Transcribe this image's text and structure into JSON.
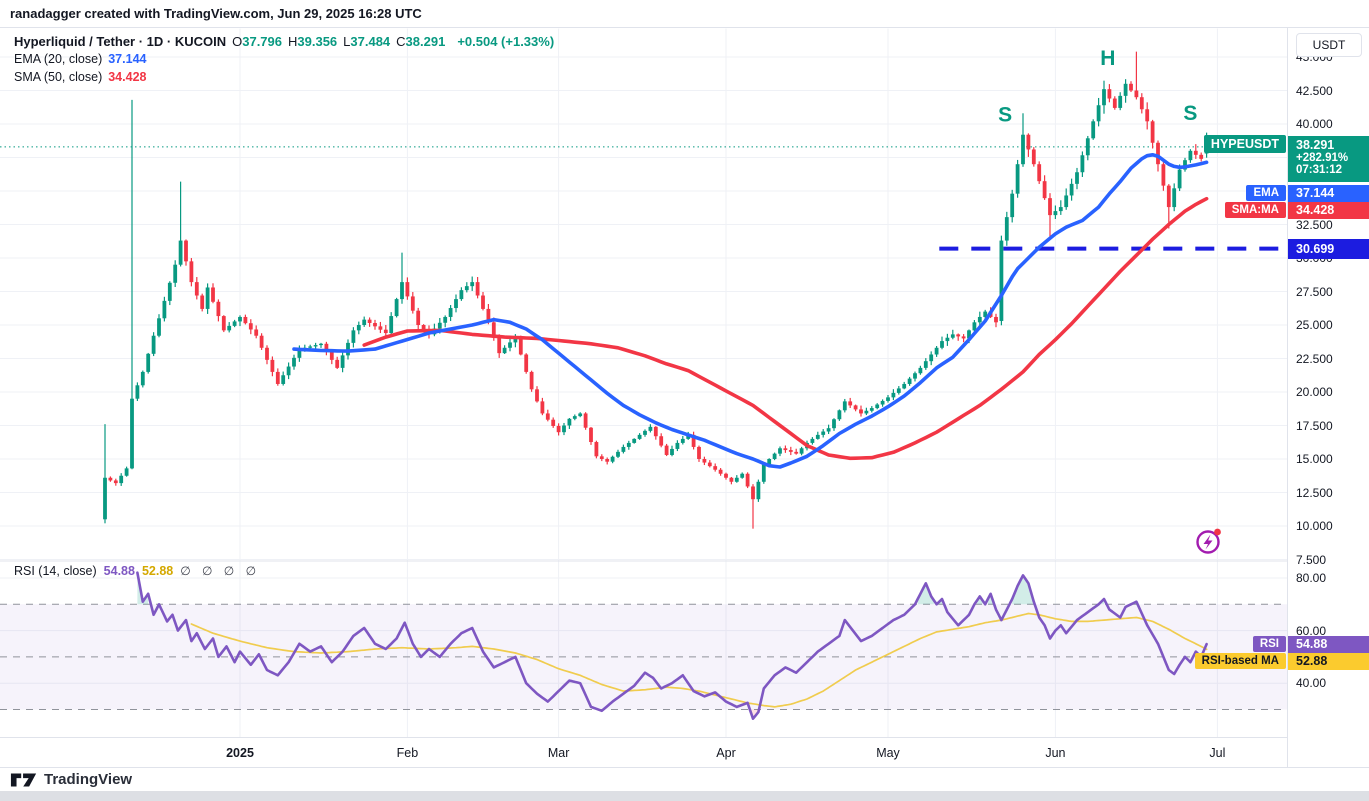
{
  "attribution": "ranadagger created with TradingView.com, Jun 29, 2025 16:28 UTC",
  "legend": {
    "symbol_title": "Hyperliquid / Tether · 1D · KUCOIN",
    "ohlc_items": [
      {
        "k": "O",
        "v": "37.796"
      },
      {
        "k": "H",
        "v": "39.356"
      },
      {
        "k": "L",
        "v": "37.484"
      },
      {
        "k": "C",
        "v": "38.291"
      }
    ],
    "change": "+0.504 (+1.33%)",
    "ema_label": "EMA (20, close)",
    "ema_value": "37.144",
    "sma_label": "SMA (50, close)",
    "sma_value": "34.428",
    "rsi_label": "RSI (14, close)",
    "rsi_value": "54.88",
    "rsi_ma_value": "52.88",
    "rsi_empties": "∅ ∅ ∅ ∅"
  },
  "axis": {
    "currency_button": "USDT",
    "price_ticks": [
      45,
      42.5,
      40,
      37.5,
      35,
      32.5,
      30,
      27.5,
      25,
      22.5,
      20,
      17.5,
      15,
      12.5,
      10,
      7.5
    ],
    "rsi_ticks": [
      80,
      60,
      40
    ],
    "time_ticks": [
      {
        "label": "2025",
        "day": 25,
        "bold": true
      },
      {
        "label": "Feb",
        "day": 56
      },
      {
        "label": "Mar",
        "day": 84
      },
      {
        "label": "Apr",
        "day": 115
      },
      {
        "label": "May",
        "day": 145
      },
      {
        "label": "Jun",
        "day": 176
      },
      {
        "label": "Jul",
        "day": 206
      }
    ],
    "scale_badges": {
      "last_price": "38.291",
      "change_pct": "+282.91%",
      "countdown": "07:31:12",
      "ema": "37.144",
      "sma": "34.428",
      "level": "30.699"
    }
  },
  "pane_labels": {
    "symbol": "HYPEUSDT",
    "ema": "EMA",
    "sma": "SMA:MA",
    "rsi": "RSI",
    "rsi_ma": "RSI-based MA"
  },
  "footer": {
    "brand": "TradingView"
  },
  "colors": {
    "up": "#089981",
    "down": "#F23645",
    "ema": "#2962FF",
    "sma": "#F23645",
    "level_line": "#1C1CE0",
    "rsi": "#7E57C2",
    "rsi_ma": "#F0CC4E",
    "rsi_ma_badge": "#FBCB2E",
    "rsi_badge": "#7E57C2",
    "annotation": "#089981",
    "grid": "#EFF1F6",
    "border": "#E0E3EB",
    "text": "#131722",
    "band_fill": "rgba(126,87,194,0.07)",
    "flash_icon": "#A21CAF"
  },
  "chart_data": {
    "type": "candlestick",
    "title": "Hyperliquid / Tether",
    "symbol": "HYPEUSDT",
    "exchange": "KUCOIN",
    "interval": "1D",
    "last_bar": {
      "o": 37.796,
      "h": 39.356,
      "l": 37.484,
      "c": 38.291,
      "change": 0.504,
      "change_pct": 1.33
    },
    "ema20_last": 37.144,
    "sma50_last": 34.428,
    "rsi_last": 54.88,
    "rsi_ma_last": 52.88,
    "price_range_visible": [
      7.4,
      47.2
    ],
    "rsi_gridlines": [
      80,
      60,
      40
    ],
    "rsi_levels": {
      "upper": 70,
      "middle": 50,
      "lower": 30
    },
    "neckline": {
      "price": 30.699,
      "day_start": 154.5,
      "extends_to_axis": true
    },
    "current_price_line": 38.291,
    "days_total": 204,
    "close_keypoints": [
      [
        0,
        13.6
      ],
      [
        2,
        13.2
      ],
      [
        4,
        14.3
      ],
      [
        5,
        19.5
      ],
      [
        7,
        21.5
      ],
      [
        9,
        24.2
      ],
      [
        11,
        26.8
      ],
      [
        13,
        29.5
      ],
      [
        14,
        31.3
      ],
      [
        16,
        28.2
      ],
      [
        18,
        26.2
      ],
      [
        19,
        27.8
      ],
      [
        22,
        24.6
      ],
      [
        25,
        25.6
      ],
      [
        28,
        24.2
      ],
      [
        32,
        20.6
      ],
      [
        36,
        23.2
      ],
      [
        40,
        23.6
      ],
      [
        43,
        21.8
      ],
      [
        46,
        24.6
      ],
      [
        48,
        25.4
      ],
      [
        52,
        24.4
      ],
      [
        55,
        28.2
      ],
      [
        58,
        25.0
      ],
      [
        60,
        24.3
      ],
      [
        63,
        25.6
      ],
      [
        66,
        27.6
      ],
      [
        68,
        28.2
      ],
      [
        71,
        25.2
      ],
      [
        73,
        22.9
      ],
      [
        76,
        24.1
      ],
      [
        79,
        20.2
      ],
      [
        81,
        18.4
      ],
      [
        84,
        17.0
      ],
      [
        86,
        18.0
      ],
      [
        88,
        18.4
      ],
      [
        91,
        15.2
      ],
      [
        93,
        14.8
      ],
      [
        96,
        15.9
      ],
      [
        99,
        16.8
      ],
      [
        101,
        17.4
      ],
      [
        104,
        15.3
      ],
      [
        106,
        16.2
      ],
      [
        108,
        16.8
      ],
      [
        110,
        15.0
      ],
      [
        113,
        14.2
      ],
      [
        116,
        13.3
      ],
      [
        118,
        13.9
      ],
      [
        120,
        12.0
      ],
      [
        122,
        14.6
      ],
      [
        125,
        15.8
      ],
      [
        128,
        15.4
      ],
      [
        130,
        16.2
      ],
      [
        132,
        16.8
      ],
      [
        134,
        17.3
      ],
      [
        137,
        19.3
      ],
      [
        140,
        18.4
      ],
      [
        142,
        18.8
      ],
      [
        145,
        19.6
      ],
      [
        148,
        20.6
      ],
      [
        151,
        21.8
      ],
      [
        153,
        22.8
      ],
      [
        155,
        23.8
      ],
      [
        157,
        24.3
      ],
      [
        159,
        24.0
      ],
      [
        161,
        25.2
      ],
      [
        163,
        26.0
      ],
      [
        165,
        25.2
      ],
      [
        166,
        31.3
      ],
      [
        168,
        34.8
      ],
      [
        170,
        39.2
      ],
      [
        172,
        37.0
      ],
      [
        175,
        33.2
      ],
      [
        177,
        33.8
      ],
      [
        180,
        36.4
      ],
      [
        183,
        40.2
      ],
      [
        185,
        42.6
      ],
      [
        187,
        41.2
      ],
      [
        189,
        43.0
      ],
      [
        191,
        42.0
      ],
      [
        193,
        40.2
      ],
      [
        195,
        37.0
      ],
      [
        197,
        33.8
      ],
      [
        199,
        36.6
      ],
      [
        201,
        38.0
      ],
      [
        203,
        37.4
      ],
      [
        204,
        38.291
      ]
    ],
    "special_bars": {
      "0": {
        "o": 10.5,
        "l": 10.2,
        "h": 17.6
      },
      "5": {
        "h": 41.8
      },
      "14": {
        "h": 35.7
      },
      "55": {
        "h": 30.4
      },
      "120": {
        "l": 9.8
      },
      "166": {
        "o": 25.3
      },
      "170": {
        "h": 40.8
      },
      "175": {
        "l": 31.6
      },
      "191": {
        "h": 45.4
      },
      "197": {
        "l": 32.2
      },
      "204": {
        "o": 37.796,
        "h": 39.356,
        "l": 37.484,
        "c": 38.291
      }
    },
    "ema20_keypoints": [
      [
        35,
        23.2
      ],
      [
        40,
        23.1
      ],
      [
        45,
        23.05
      ],
      [
        50,
        23.2
      ],
      [
        55,
        23.8
      ],
      [
        60,
        24.4
      ],
      [
        64,
        24.7
      ],
      [
        68,
        25.0
      ],
      [
        72,
        25.4
      ],
      [
        75,
        25.2
      ],
      [
        78,
        24.7
      ],
      [
        81,
        23.9
      ],
      [
        84,
        22.9
      ],
      [
        87,
        21.9
      ],
      [
        90,
        20.9
      ],
      [
        93,
        19.9
      ],
      [
        96,
        19.0
      ],
      [
        99,
        18.3
      ],
      [
        102,
        17.7
      ],
      [
        105,
        17.2
      ],
      [
        108,
        16.8
      ],
      [
        111,
        16.4
      ],
      [
        114,
        15.9
      ],
      [
        117,
        15.4
      ],
      [
        120,
        15.0
      ],
      [
        123,
        14.5
      ],
      [
        125,
        14.4
      ],
      [
        127,
        14.7
      ],
      [
        130,
        15.2
      ],
      [
        133,
        16.0
      ],
      [
        136,
        16.9
      ],
      [
        139,
        17.6
      ],
      [
        142,
        18.2
      ],
      [
        145,
        18.9
      ],
      [
        148,
        19.7
      ],
      [
        151,
        20.7
      ],
      [
        154,
        21.8
      ],
      [
        157,
        22.6
      ],
      [
        160,
        23.9
      ],
      [
        163,
        25.3
      ],
      [
        166,
        27.2
      ],
      [
        168,
        28.6
      ],
      [
        169,
        29.2
      ],
      [
        171,
        30.0
      ],
      [
        173,
        30.8
      ],
      [
        176,
        31.8
      ],
      [
        178,
        32.3
      ],
      [
        181,
        32.8
      ],
      [
        184,
        33.8
      ],
      [
        186,
        34.8
      ],
      [
        188,
        35.7
      ],
      [
        190,
        36.7
      ],
      [
        192,
        37.4
      ],
      [
        193.5,
        37.75
      ],
      [
        195,
        37.6
      ],
      [
        197,
        37.0
      ],
      [
        198.5,
        36.75
      ],
      [
        200,
        36.8
      ],
      [
        202,
        36.95
      ],
      [
        204,
        37.144
      ]
    ],
    "sma50_keypoints": [
      [
        48,
        23.5
      ],
      [
        52,
        24.1
      ],
      [
        56,
        24.55
      ],
      [
        62,
        24.6
      ],
      [
        68,
        24.3
      ],
      [
        74,
        24.1
      ],
      [
        80,
        24.0
      ],
      [
        85,
        23.8
      ],
      [
        90,
        23.6
      ],
      [
        95,
        23.3
      ],
      [
        100,
        22.7
      ],
      [
        104,
        22.1
      ],
      [
        108,
        21.6
      ],
      [
        114,
        20.3
      ],
      [
        120,
        19.0
      ],
      [
        126,
        17.2
      ],
      [
        130,
        16.0
      ],
      [
        134,
        15.3
      ],
      [
        138,
        15.05
      ],
      [
        142,
        15.1
      ],
      [
        146,
        15.5
      ],
      [
        150,
        16.2
      ],
      [
        154,
        17.0
      ],
      [
        158,
        18.0
      ],
      [
        162,
        19.0
      ],
      [
        166,
        20.2
      ],
      [
        170,
        21.5
      ],
      [
        173,
        22.8
      ],
      [
        176,
        23.9
      ],
      [
        179,
        25.1
      ],
      [
        182,
        26.4
      ],
      [
        185,
        27.7
      ],
      [
        188,
        29.0
      ],
      [
        191,
        30.2
      ],
      [
        194,
        31.4
      ],
      [
        197,
        32.5
      ],
      [
        200,
        33.5
      ],
      [
        202,
        34.0
      ],
      [
        204,
        34.428
      ]
    ],
    "rsi_keypoints": [
      [
        6,
        82
      ],
      [
        7,
        71
      ],
      [
        8,
        74
      ],
      [
        9,
        66
      ],
      [
        10,
        70
      ],
      [
        11.5,
        63.5
      ],
      [
        12.5,
        66
      ],
      [
        13.5,
        60
      ],
      [
        15,
        64
      ],
      [
        16,
        56
      ],
      [
        17,
        59
      ],
      [
        18.5,
        53
      ],
      [
        20,
        57
      ],
      [
        21,
        50
      ],
      [
        22.5,
        54
      ],
      [
        24,
        48
      ],
      [
        25,
        52
      ],
      [
        27,
        47
      ],
      [
        28.5,
        51
      ],
      [
        30,
        45
      ],
      [
        32,
        43
      ],
      [
        34,
        48
      ],
      [
        36,
        55
      ],
      [
        38,
        52
      ],
      [
        40,
        54
      ],
      [
        42,
        48
      ],
      [
        44,
        52
      ],
      [
        46,
        58
      ],
      [
        48,
        61
      ],
      [
        50,
        55
      ],
      [
        52,
        53
      ],
      [
        54,
        57
      ],
      [
        55.5,
        63
      ],
      [
        57,
        55
      ],
      [
        58.5,
        50
      ],
      [
        60,
        53
      ],
      [
        62,
        50
      ],
      [
        64,
        55
      ],
      [
        66,
        59
      ],
      [
        68,
        61
      ],
      [
        70,
        52
      ],
      [
        72,
        46
      ],
      [
        74,
        48
      ],
      [
        76,
        50
      ],
      [
        78,
        40
      ],
      [
        80,
        36
      ],
      [
        82,
        33
      ],
      [
        84,
        37
      ],
      [
        86,
        41
      ],
      [
        88,
        40
      ],
      [
        90,
        31
      ],
      [
        92,
        29.5
      ],
      [
        94,
        33
      ],
      [
        96,
        36
      ],
      [
        98,
        39
      ],
      [
        100,
        44
      ],
      [
        101.5,
        42
      ],
      [
        103,
        38
      ],
      [
        105,
        40
      ],
      [
        107,
        43
      ],
      [
        109,
        37
      ],
      [
        111,
        35
      ],
      [
        113,
        36.5
      ],
      [
        115,
        33
      ],
      [
        117,
        31
      ],
      [
        119,
        32.5
      ],
      [
        120,
        26.5
      ],
      [
        121,
        29
      ],
      [
        122,
        38
      ],
      [
        124,
        43
      ],
      [
        126,
        46
      ],
      [
        128,
        44
      ],
      [
        130,
        48
      ],
      [
        132,
        52
      ],
      [
        134,
        55
      ],
      [
        136,
        58
      ],
      [
        137,
        64
      ],
      [
        138.5,
        60
      ],
      [
        140,
        56
      ],
      [
        142,
        58
      ],
      [
        144,
        61
      ],
      [
        146,
        64
      ],
      [
        148,
        66
      ],
      [
        150,
        70
      ],
      [
        151,
        74
      ],
      [
        152,
        78
      ],
      [
        153,
        73
      ],
      [
        154,
        70
      ],
      [
        155,
        72
      ],
      [
        156,
        67
      ],
      [
        158,
        62
      ],
      [
        160,
        66
      ],
      [
        161,
        70
      ],
      [
        162,
        73
      ],
      [
        163,
        70
      ],
      [
        164,
        74
      ],
      [
        165,
        68
      ],
      [
        166,
        64
      ],
      [
        168,
        72
      ],
      [
        169,
        77
      ],
      [
        170,
        81
      ],
      [
        171,
        78
      ],
      [
        172,
        71
      ],
      [
        173,
        65
      ],
      [
        174,
        62
      ],
      [
        175,
        57
      ],
      [
        176,
        60
      ],
      [
        177,
        62
      ],
      [
        178,
        59
      ],
      [
        180,
        64
      ],
      [
        182,
        67
      ],
      [
        184,
        70
      ],
      [
        185,
        72
      ],
      [
        186,
        68
      ],
      [
        188,
        65
      ],
      [
        189,
        69
      ],
      [
        191,
        71
      ],
      [
        193,
        62
      ],
      [
        195,
        55
      ],
      [
        197,
        45
      ],
      [
        198,
        43.5
      ],
      [
        199,
        47
      ],
      [
        200,
        50
      ],
      [
        201,
        48
      ],
      [
        202,
        52
      ],
      [
        203,
        50
      ],
      [
        204,
        54.88
      ]
    ],
    "rsi_ma_keypoints": [
      [
        16,
        62.5
      ],
      [
        20,
        59
      ],
      [
        25,
        56
      ],
      [
        30,
        53.5
      ],
      [
        35,
        52
      ],
      [
        40,
        51.5
      ],
      [
        45,
        52
      ],
      [
        50,
        53
      ],
      [
        55,
        53.5
      ],
      [
        60,
        53
      ],
      [
        65,
        53.5
      ],
      [
        68,
        54
      ],
      [
        72,
        53
      ],
      [
        76,
        51.5
      ],
      [
        80,
        49
      ],
      [
        84,
        45.5
      ],
      [
        88,
        43
      ],
      [
        92,
        39.5
      ],
      [
        96,
        37
      ],
      [
        100,
        37.5
      ],
      [
        104,
        38.5
      ],
      [
        107,
        38
      ],
      [
        110,
        37
      ],
      [
        113,
        35.5
      ],
      [
        116,
        34
      ],
      [
        119,
        32.5
      ],
      [
        122,
        31.5
      ],
      [
        124,
        31
      ],
      [
        127,
        32
      ],
      [
        130,
        34
      ],
      [
        133,
        37
      ],
      [
        136,
        41
      ],
      [
        139,
        45
      ],
      [
        142,
        48
      ],
      [
        145,
        51
      ],
      [
        148,
        54
      ],
      [
        151,
        57
      ],
      [
        154,
        59.5
      ],
      [
        157,
        60.5
      ],
      [
        160,
        61.5
      ],
      [
        163,
        63
      ],
      [
        166,
        64
      ],
      [
        169,
        65.5
      ],
      [
        171,
        66.5
      ],
      [
        173,
        66
      ],
      [
        176,
        64.5
      ],
      [
        179,
        63.5
      ],
      [
        182,
        63.5
      ],
      [
        185,
        64
      ],
      [
        188,
        64.5
      ],
      [
        191,
        65
      ],
      [
        194,
        63.5
      ],
      [
        197,
        60.5
      ],
      [
        200,
        57
      ],
      [
        202,
        55
      ],
      [
        204,
        52.88
      ]
    ],
    "annotations": [
      {
        "text": "S",
        "day": 166.7,
        "price": 40.6
      },
      {
        "text": "H",
        "day": 185.7,
        "price": 44.8
      },
      {
        "text": "S",
        "day": 201.0,
        "price": 40.7
      }
    ]
  }
}
